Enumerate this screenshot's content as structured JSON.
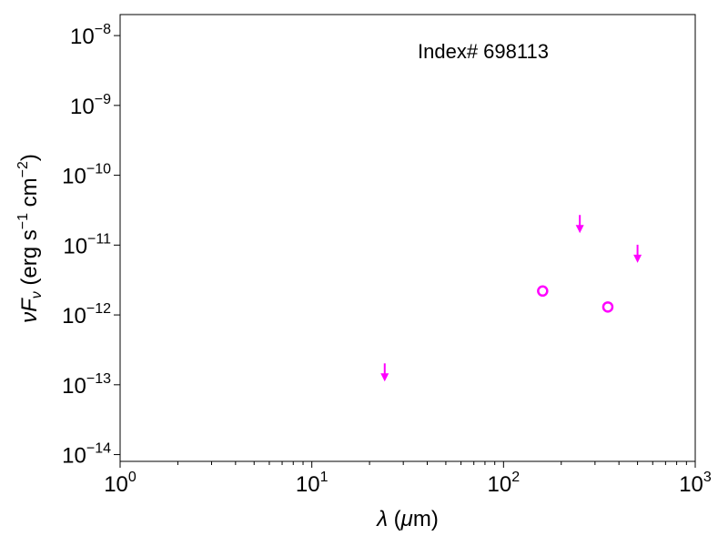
{
  "chart_data": {
    "type": "scatter",
    "xscale": "log",
    "yscale": "log",
    "xlim": [
      1,
      1000
    ],
    "ylim": [
      8e-15,
      2e-08
    ],
    "xticks": [
      {
        "value": 1,
        "base": "10",
        "exp": "0"
      },
      {
        "value": 10,
        "base": "10",
        "exp": "1"
      },
      {
        "value": 100,
        "base": "10",
        "exp": "2"
      },
      {
        "value": 1000,
        "base": "10",
        "exp": "3"
      }
    ],
    "yticks": [
      {
        "value": 1e-14,
        "base": "10",
        "exp": "−14"
      },
      {
        "value": 1e-13,
        "base": "10",
        "exp": "−13"
      },
      {
        "value": 1e-12,
        "base": "10",
        "exp": "−12"
      },
      {
        "value": 1e-11,
        "base": "10",
        "exp": "−11"
      },
      {
        "value": 1e-10,
        "base": "10",
        "exp": "−10"
      },
      {
        "value": 1e-09,
        "base": "10",
        "exp": "−9"
      },
      {
        "value": 1e-08,
        "base": "10",
        "exp": "−8"
      }
    ],
    "xlabel": "λ (μm)",
    "ylabel": "νFν (erg s−1 cm−2)",
    "annotation": "Index# 698113",
    "marker_color": "#ff00ff",
    "detections": [
      {
        "x": 160,
        "y": 2.2e-12
      },
      {
        "x": 350,
        "y": 1.3e-12
      }
    ],
    "upper_limits": [
      {
        "x": 24,
        "y": 1.5e-13
      },
      {
        "x": 250,
        "y": 2e-11
      },
      {
        "x": 500,
        "y": 7.5e-12
      }
    ],
    "grid": false
  }
}
